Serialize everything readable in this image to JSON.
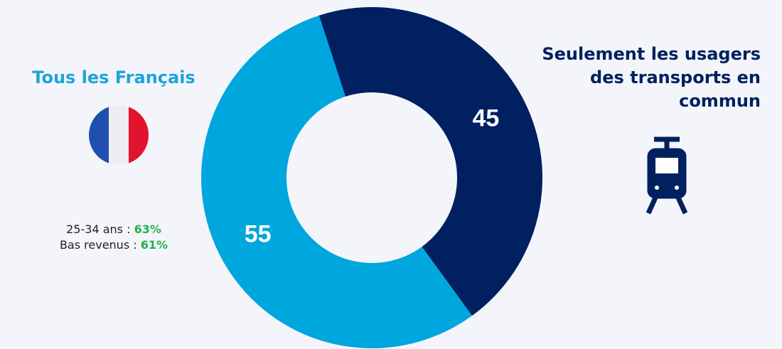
{
  "chart_data": {
    "type": "donut",
    "categories": [
      "Tous les Français",
      "Seulement les usagers des transports en commun"
    ],
    "values": [
      55,
      45
    ],
    "colors": [
      "#00a6de",
      "#002060"
    ],
    "annotations": [
      {
        "text": "25-34 ans :",
        "highlight": "63%"
      },
      {
        "text": "Bas revenus :",
        "highlight": "61%"
      }
    ]
  }
}
